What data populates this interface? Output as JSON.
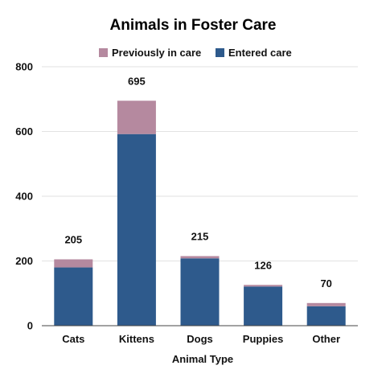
{
  "chart_data": {
    "type": "bar",
    "stacked": true,
    "title": "Animals in Foster Care",
    "xlabel": "Animal Type",
    "ylabel": "",
    "ylim": [
      0,
      800
    ],
    "yticks": [
      0,
      200,
      400,
      600,
      800
    ],
    "grid": true,
    "legend_position": "top",
    "categories": [
      "Cats",
      "Kittens",
      "Dogs",
      "Puppies",
      "Other"
    ],
    "series": [
      {
        "name": "Entered care",
        "color": "#2e5a8c",
        "values": [
          180,
          592,
          208,
          121,
          60
        ]
      },
      {
        "name": "Previously in care",
        "color": "#b5899f",
        "values": [
          25,
          103,
          7,
          5,
          10
        ]
      }
    ],
    "totals": [
      "205",
      "695",
      "215",
      "126",
      "70"
    ],
    "legend": [
      {
        "label": "Previously in care",
        "color": "#b5899f"
      },
      {
        "label": "Entered care",
        "color": "#2e5a8c"
      }
    ]
  }
}
